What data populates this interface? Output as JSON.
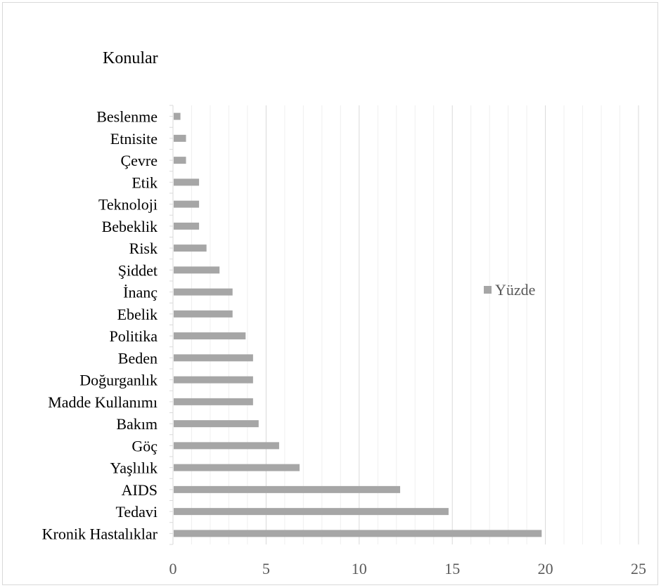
{
  "chart_data": {
    "type": "bar",
    "orientation": "horizontal",
    "title": "Konular",
    "xlabel": "",
    "ylabel": "",
    "xlim": [
      0,
      25
    ],
    "xticks": [
      0,
      5,
      10,
      15,
      20,
      25
    ],
    "grid": true,
    "legend_position": "right",
    "categories": [
      "Beslenme",
      "Etnisite",
      "Çevre",
      "Etik",
      "Teknoloji",
      "Bebeklik",
      "Risk",
      "Şiddet",
      "İnanç",
      "Ebelik",
      "Politika",
      "Beden",
      "Doğurganlık",
      "Madde Kullanımı",
      "Bakım",
      "Göç",
      "Yaşlılık",
      "AIDS",
      "Tedavi",
      "Kronik Hastalıklar"
    ],
    "series": [
      {
        "name": "Yüzde",
        "color": "#a6a6a6",
        "values": [
          0.4,
          0.7,
          0.7,
          1.4,
          1.4,
          1.4,
          1.8,
          2.5,
          3.2,
          3.2,
          3.9,
          4.3,
          4.3,
          4.3,
          4.6,
          5.7,
          6.8,
          12.2,
          14.8,
          19.8
        ]
      }
    ]
  }
}
